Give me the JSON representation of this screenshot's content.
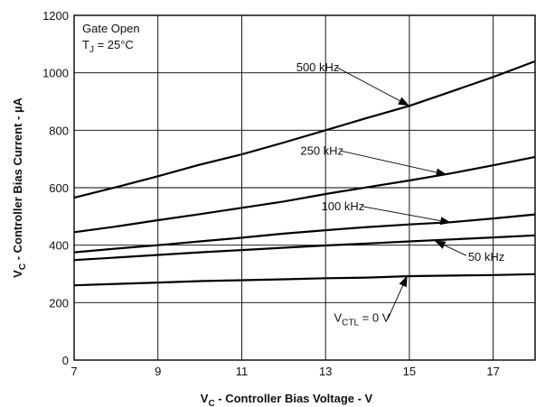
{
  "chart_data": {
    "type": "line",
    "xlabel_main": "V",
    "xlabel_sub": "C",
    "xlabel_rest": " - Controller Bias Voltage - V",
    "ylabel_main": "V",
    "ylabel_sub": "C",
    "ylabel_rest": " - Controller Bias Current - µA",
    "xlim": [
      7,
      18
    ],
    "ylim": [
      0,
      1200
    ],
    "x_ticks": [
      7,
      9,
      11,
      13,
      15,
      17
    ],
    "y_ticks": [
      0,
      200,
      400,
      600,
      800,
      1000,
      1200
    ],
    "grid": true,
    "conditions": {
      "line1": "Gate Open",
      "line2_main": "T",
      "line2_sub": "J",
      "line2_rest": " = 25°C"
    },
    "series": [
      {
        "name": "500 kHz",
        "label_main": "500 kHz",
        "label_sub": "",
        "label_rest": "",
        "x": [
          7,
          8,
          9,
          10,
          11,
          12,
          13,
          14,
          15,
          16,
          17,
          18
        ],
        "y": [
          565,
          602,
          640,
          680,
          716,
          757,
          800,
          843,
          885,
          935,
          985,
          1040
        ],
        "label_at": [
          12.3,
          1005
        ],
        "arrow_to": [
          15.0,
          885
        ]
      },
      {
        "name": "250 kHz",
        "label_main": "250 kHz",
        "label_sub": "",
        "label_rest": "",
        "x": [
          7,
          8,
          9,
          10,
          11,
          12,
          13,
          14,
          15,
          16,
          17,
          18
        ],
        "y": [
          445,
          465,
          487,
          508,
          530,
          552,
          578,
          602,
          625,
          650,
          678,
          707
        ],
        "label_at": [
          12.4,
          715
        ],
        "arrow_to": [
          15.9,
          645
        ]
      },
      {
        "name": "100 kHz",
        "label_main": "100 kHz",
        "label_sub": "",
        "label_rest": "",
        "x": [
          7,
          8,
          9,
          10,
          11,
          12,
          13,
          14,
          15,
          16,
          17,
          18
        ],
        "y": [
          375,
          388,
          400,
          413,
          426,
          440,
          452,
          463,
          472,
          480,
          493,
          507
        ],
        "label_at": [
          12.9,
          522
        ],
        "arrow_to": [
          16.0,
          478
        ]
      },
      {
        "name": "50 kHz",
        "label_main": "50 kHz",
        "label_sub": "",
        "label_rest": "",
        "x": [
          7,
          8,
          9,
          10,
          11,
          12,
          13,
          14,
          15,
          16,
          17,
          18
        ],
        "y": [
          348,
          357,
          366,
          375,
          383,
          391,
          399,
          406,
          413,
          420,
          427,
          434
        ],
        "label_at": [
          16.4,
          345
        ],
        "arrow_to": [
          15.6,
          416
        ]
      },
      {
        "name": "VCTL = 0 V",
        "label_main": "V",
        "label_sub": "CTL",
        "label_rest": " = 0 V",
        "x": [
          7,
          8,
          9,
          10,
          11,
          12,
          13,
          14,
          15,
          16,
          17,
          18
        ],
        "y": [
          260,
          265,
          270,
          275,
          278,
          281,
          285,
          287,
          292,
          294,
          296,
          299
        ],
        "label_at": [
          13.2,
          133
        ],
        "arrow_to": [
          14.95,
          294
        ]
      }
    ]
  }
}
